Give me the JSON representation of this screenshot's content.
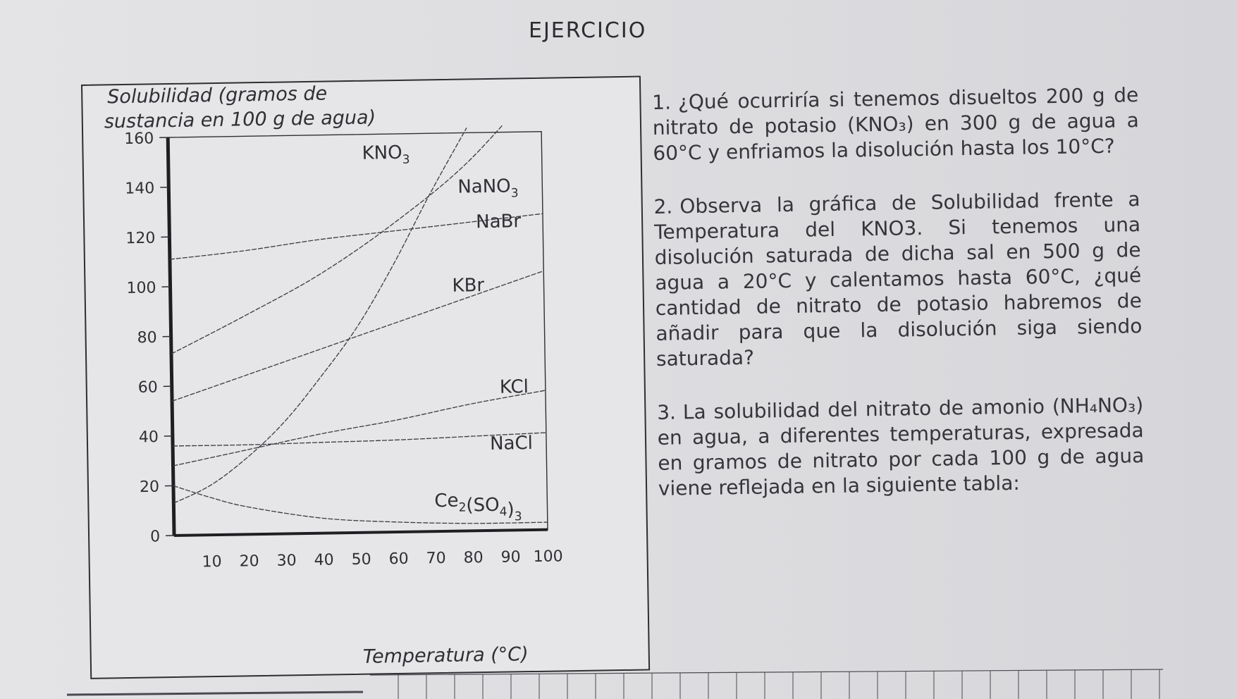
{
  "page": {
    "title": "EJERCICIO"
  },
  "chart_data": {
    "type": "line",
    "ylabel_lines": [
      "Solubilidad (gramos de",
      "sustancia en 100 g de agua)"
    ],
    "xlabel": "Temperatura (°C)",
    "xlim": [
      0,
      100
    ],
    "ylim": [
      0,
      160
    ],
    "x_ticks": [
      10,
      20,
      30,
      40,
      50,
      60,
      70,
      80,
      90,
      100
    ],
    "y_ticks": [
      0,
      20,
      40,
      60,
      80,
      100,
      120,
      140,
      160
    ],
    "series": [
      {
        "name": "KNO3",
        "label_main": "KNO",
        "label_sub": "3",
        "points": [
          [
            0,
            13
          ],
          [
            10,
            20
          ],
          [
            20,
            31
          ],
          [
            30,
            45
          ],
          [
            40,
            63
          ],
          [
            50,
            83
          ],
          [
            60,
            108
          ],
          [
            70,
            136
          ],
          [
            80,
            162
          ]
        ]
      },
      {
        "name": "NaNO3",
        "label_main": "NaNO",
        "label_sub": "3",
        "points": [
          [
            0,
            73
          ],
          [
            20,
            88
          ],
          [
            40,
            104
          ],
          [
            60,
            124
          ],
          [
            80,
            148
          ],
          [
            100,
            180
          ]
        ]
      },
      {
        "name": "NaBr",
        "label_main": "NaBr",
        "label_sub": "",
        "points": [
          [
            0,
            111
          ],
          [
            20,
            114
          ],
          [
            40,
            118
          ],
          [
            60,
            121
          ],
          [
            80,
            124
          ],
          [
            100,
            127
          ]
        ]
      },
      {
        "name": "KBr",
        "label_main": "KBr",
        "label_sub": "",
        "points": [
          [
            0,
            54
          ],
          [
            20,
            64
          ],
          [
            40,
            74
          ],
          [
            60,
            84
          ],
          [
            80,
            94
          ],
          [
            100,
            104
          ]
        ]
      },
      {
        "name": "KCl",
        "label_main": "KCl",
        "label_sub": "",
        "points": [
          [
            0,
            28
          ],
          [
            20,
            34
          ],
          [
            40,
            40
          ],
          [
            60,
            45
          ],
          [
            80,
            51
          ],
          [
            100,
            56
          ]
        ]
      },
      {
        "name": "NaCl",
        "label_main": "NaCl",
        "label_sub": "",
        "points": [
          [
            0,
            36
          ],
          [
            20,
            36
          ],
          [
            40,
            36.5
          ],
          [
            60,
            37
          ],
          [
            80,
            38
          ],
          [
            100,
            39
          ]
        ]
      },
      {
        "name": "Ce2(SO4)3",
        "label_main": "Ce",
        "label_sub": "2",
        "label_mid": "(SO",
        "label_sub2": "4",
        "label_end": ")",
        "label_sub3": "3",
        "points": [
          [
            0,
            20
          ],
          [
            10,
            15
          ],
          [
            20,
            11
          ],
          [
            40,
            6
          ],
          [
            60,
            4
          ],
          [
            80,
            3
          ],
          [
            100,
            3
          ]
        ]
      }
    ]
  },
  "questions": [
    {
      "number": "1.",
      "text": "¿Qué ocurriría si tenemos disueltos 200 g de nitrato de potasio (KNO₃) en 300 g de agua a 60°C y enfriamos la disolución hasta los 10°C?"
    },
    {
      "number": "2.",
      "text": "Observa la gráfica de Solubilidad frente a Temperatura del KNO3. Si tenemos una disolución saturada de dicha sal en 500 g de agua a 20°C y calentamos hasta 60°C, ¿qué cantidad de nitrato de potasio habremos de añadir para que la disolución siga siendo saturada?"
    },
    {
      "number": "3.",
      "text": "La solubilidad del nitrato de amonio (NH₄NO₃) en agua, a diferentes temperaturas, expresada en gramos de nitrato por cada 100 g de agua viene reflejada en la siguiente tabla:"
    }
  ],
  "colors": {
    "ink": "#2f2f34",
    "curve": "#3a3a40",
    "paper": "#e4e4e6"
  }
}
